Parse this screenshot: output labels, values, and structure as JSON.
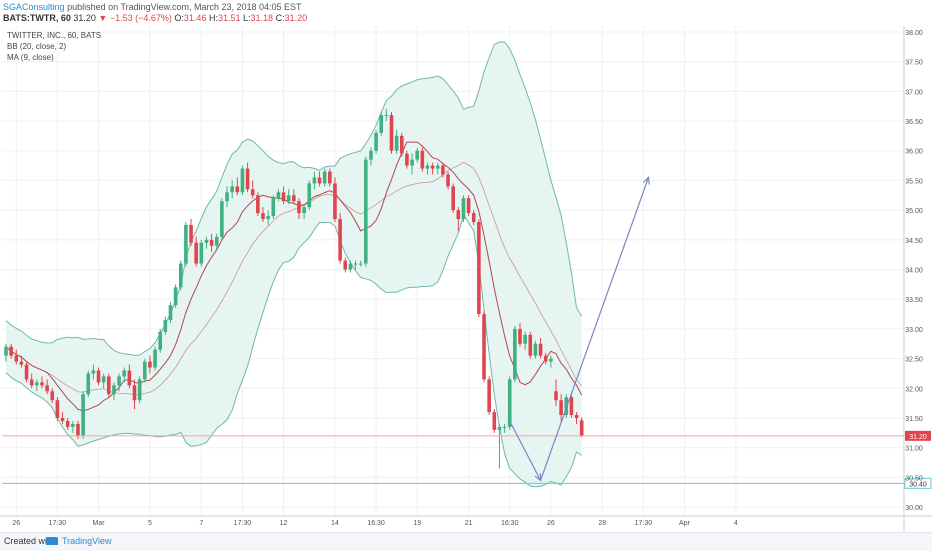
{
  "header": {
    "author": "SGAConsulting",
    "published_text": "published on TradingView.com, March 23, 2018 04:05 EST",
    "symbol": "BATS:TWTR, 60",
    "arrow": "▼",
    "last": "31.20",
    "change": "−1.53 (−4.67%)",
    "open_label": "O:",
    "open_value": "31.46",
    "high_label": "H:",
    "high_value": "31.51",
    "low_label": "L:",
    "low_value": "31.18",
    "close_label": "C:",
    "close_value": "31.20"
  },
  "legend": {
    "title": "TWITTER, INC., 60, BATS",
    "bb": "BB (20, close, 2)",
    "ma": "MA (9, close)"
  },
  "footer": {
    "created_with": "Created with",
    "brand": "TradingView"
  },
  "colors": {
    "up": "#3fb07f",
    "down": "#e0454f",
    "band": "#6fb9aa",
    "band_fill": "#e6f5f2",
    "ma": "#b0474f",
    "basis": "#b0474f",
    "arrow": "#7b86c4",
    "grid": "#eef0f3",
    "price_line": "#f4a4a8",
    "target_line": "#66c8d6"
  },
  "chart_data": {
    "type": "candlestick",
    "title": "TWITTER, INC., 60, BATS",
    "y_axis": {
      "min": 29.85,
      "max": 38.1,
      "ticks": [
        "30.00",
        "30.50",
        "31.00",
        "31.50",
        "32.00",
        "32.50",
        "33.00",
        "33.50",
        "34.00",
        "34.50",
        "35.00",
        "35.50",
        "36.00",
        "36.50",
        "37.00",
        "37.50",
        "38.00"
      ],
      "side": "right"
    },
    "x_axis": {
      "tick_labels": [
        "26",
        "17:30",
        "Mar",
        "5",
        "7",
        "17:30",
        "12",
        "14",
        "16:30",
        "19",
        "21",
        "16:30",
        "26",
        "28",
        "17:30",
        "Apr",
        "4"
      ],
      "tick_bars": [
        2,
        10,
        18,
        28,
        38,
        46,
        54,
        64,
        72,
        80,
        90,
        98,
        106,
        116,
        124,
        132,
        142
      ]
    },
    "grid": true,
    "price_line": {
      "value": 31.2,
      "label": "31.20"
    },
    "target_line": {
      "value": 30.4,
      "label": "30.40"
    },
    "projection": [
      [
        98,
        31.45
      ],
      [
        104,
        30.45
      ],
      [
        125,
        35.55
      ]
    ],
    "ohlc": [
      [
        32.55,
        32.75,
        32.45,
        32.7
      ],
      [
        32.7,
        32.75,
        32.5,
        32.55
      ],
      [
        32.55,
        32.65,
        32.4,
        32.45
      ],
      [
        32.45,
        32.55,
        32.35,
        32.4
      ],
      [
        32.4,
        32.45,
        32.1,
        32.15
      ],
      [
        32.15,
        32.25,
        32.0,
        32.05
      ],
      [
        32.05,
        32.15,
        31.95,
        32.1
      ],
      [
        32.1,
        32.2,
        32.0,
        32.05
      ],
      [
        32.05,
        32.15,
        31.9,
        31.95
      ],
      [
        31.95,
        32.0,
        31.75,
        31.8
      ],
      [
        31.8,
        31.85,
        31.45,
        31.5
      ],
      [
        31.5,
        31.6,
        31.4,
        31.45
      ],
      [
        31.45,
        31.5,
        31.3,
        31.35
      ],
      [
        31.35,
        31.45,
        31.25,
        31.4
      ],
      [
        31.4,
        31.45,
        31.15,
        31.2
      ],
      [
        31.2,
        31.95,
        31.15,
        31.9
      ],
      [
        31.9,
        32.3,
        31.85,
        32.25
      ],
      [
        32.25,
        32.4,
        32.15,
        32.3
      ],
      [
        32.3,
        32.35,
        32.05,
        32.1
      ],
      [
        32.1,
        32.25,
        32.0,
        32.2
      ],
      [
        32.2,
        32.25,
        31.85,
        31.9
      ],
      [
        31.9,
        32.1,
        31.8,
        32.05
      ],
      [
        32.05,
        32.25,
        31.95,
        32.2
      ],
      [
        32.2,
        32.35,
        32.1,
        32.3
      ],
      [
        32.3,
        32.4,
        32.0,
        32.05
      ],
      [
        32.05,
        32.15,
        31.65,
        31.8
      ],
      [
        31.8,
        32.2,
        31.75,
        32.15
      ],
      [
        32.15,
        32.5,
        32.1,
        32.45
      ],
      [
        32.45,
        32.55,
        32.25,
        32.35
      ],
      [
        32.35,
        32.7,
        32.3,
        32.65
      ],
      [
        32.65,
        33.0,
        32.6,
        32.95
      ],
      [
        32.95,
        33.2,
        32.9,
        33.15
      ],
      [
        33.15,
        33.45,
        33.1,
        33.4
      ],
      [
        33.4,
        33.75,
        33.35,
        33.7
      ],
      [
        33.7,
        34.15,
        33.65,
        34.1
      ],
      [
        34.1,
        34.8,
        34.05,
        34.75
      ],
      [
        34.75,
        34.85,
        34.4,
        34.45
      ],
      [
        34.45,
        34.55,
        34.05,
        34.1
      ],
      [
        34.1,
        34.5,
        34.05,
        34.45
      ],
      [
        34.45,
        34.55,
        34.35,
        34.5
      ],
      [
        34.5,
        34.6,
        34.3,
        34.4
      ],
      [
        34.4,
        34.6,
        34.35,
        34.55
      ],
      [
        34.55,
        35.2,
        34.5,
        35.15
      ],
      [
        35.15,
        35.4,
        35.05,
        35.3
      ],
      [
        35.3,
        35.5,
        35.2,
        35.4
      ],
      [
        35.4,
        35.55,
        35.25,
        35.3
      ],
      [
        35.3,
        35.75,
        35.25,
        35.7
      ],
      [
        35.7,
        35.8,
        35.3,
        35.35
      ],
      [
        35.35,
        35.5,
        35.2,
        35.25
      ],
      [
        35.25,
        35.3,
        34.9,
        34.95
      ],
      [
        34.95,
        35.05,
        34.8,
        34.85
      ],
      [
        34.85,
        35.0,
        34.75,
        34.9
      ],
      [
        34.9,
        35.25,
        34.85,
        35.2
      ],
      [
        35.2,
        35.35,
        35.15,
        35.3
      ],
      [
        35.3,
        35.4,
        35.1,
        35.15
      ],
      [
        35.15,
        35.35,
        35.1,
        35.25
      ],
      [
        35.25,
        35.35,
        35.1,
        35.15
      ],
      [
        35.15,
        35.2,
        34.85,
        34.95
      ],
      [
        34.95,
        35.1,
        34.85,
        35.05
      ],
      [
        35.05,
        35.5,
        35.0,
        35.45
      ],
      [
        35.45,
        35.65,
        35.35,
        35.55
      ],
      [
        35.55,
        35.65,
        35.4,
        35.45
      ],
      [
        35.45,
        35.7,
        35.4,
        35.65
      ],
      [
        35.65,
        35.7,
        35.4,
        35.45
      ],
      [
        35.45,
        35.55,
        34.8,
        34.85
      ],
      [
        34.85,
        34.95,
        34.1,
        34.15
      ],
      [
        34.15,
        34.2,
        33.95,
        34.0
      ],
      [
        34.0,
        34.15,
        33.95,
        34.1
      ],
      [
        34.1,
        34.15,
        34.0,
        34.1
      ],
      [
        34.1,
        34.15,
        34.05,
        34.1
      ],
      [
        34.1,
        35.9,
        34.05,
        35.85
      ],
      [
        35.85,
        36.05,
        35.75,
        36.0
      ],
      [
        36.0,
        36.35,
        35.95,
        36.3
      ],
      [
        36.3,
        36.65,
        36.25,
        36.6
      ],
      [
        36.6,
        36.7,
        36.5,
        36.6
      ],
      [
        36.6,
        36.65,
        35.95,
        36.0
      ],
      [
        36.0,
        36.35,
        35.95,
        36.25
      ],
      [
        36.25,
        36.3,
        35.9,
        35.95
      ],
      [
        35.95,
        36.0,
        35.7,
        35.75
      ],
      [
        35.75,
        35.95,
        35.6,
        35.85
      ],
      [
        35.85,
        36.05,
        35.8,
        36.0
      ],
      [
        36.0,
        36.05,
        35.65,
        35.7
      ],
      [
        35.7,
        35.8,
        35.6,
        35.75
      ],
      [
        35.75,
        35.8,
        35.6,
        35.7
      ],
      [
        35.7,
        35.8,
        35.6,
        35.75
      ],
      [
        35.75,
        35.8,
        35.55,
        35.6
      ],
      [
        35.6,
        35.65,
        35.35,
        35.4
      ],
      [
        35.4,
        35.45,
        34.95,
        35.0
      ],
      [
        35.0,
        35.05,
        34.65,
        34.85
      ],
      [
        34.85,
        35.25,
        34.8,
        35.2
      ],
      [
        35.2,
        35.25,
        34.9,
        34.95
      ],
      [
        34.95,
        35.0,
        34.75,
        34.8
      ],
      [
        34.8,
        34.85,
        33.2,
        33.25
      ],
      [
        33.25,
        33.3,
        32.1,
        32.15
      ],
      [
        32.15,
        32.2,
        31.55,
        31.6
      ],
      [
        31.6,
        31.65,
        31.25,
        31.3
      ],
      [
        31.3,
        31.4,
        30.65,
        31.35
      ],
      [
        31.35,
        31.4,
        31.25,
        31.35
      ],
      [
        31.35,
        32.2,
        31.3,
        32.15
      ],
      [
        32.15,
        33.05,
        32.1,
        33.0
      ],
      [
        33.0,
        33.1,
        32.7,
        32.75
      ],
      [
        32.75,
        32.95,
        32.65,
        32.9
      ],
      [
        32.9,
        32.95,
        32.5,
        32.55
      ],
      [
        32.55,
        32.8,
        32.5,
        32.75
      ],
      [
        32.75,
        32.85,
        32.5,
        32.55
      ],
      [
        32.55,
        32.6,
        32.4,
        32.45
      ],
      [
        32.45,
        32.55,
        32.35,
        32.5
      ],
      [
        31.95,
        32.15,
        31.7,
        31.8
      ],
      [
        31.8,
        31.9,
        31.45,
        31.55
      ],
      [
        31.55,
        31.9,
        31.5,
        31.85
      ],
      [
        31.85,
        31.9,
        31.5,
        31.55
      ],
      [
        31.55,
        31.6,
        31.4,
        31.5
      ],
      [
        31.46,
        31.51,
        31.18,
        31.2
      ]
    ]
  }
}
